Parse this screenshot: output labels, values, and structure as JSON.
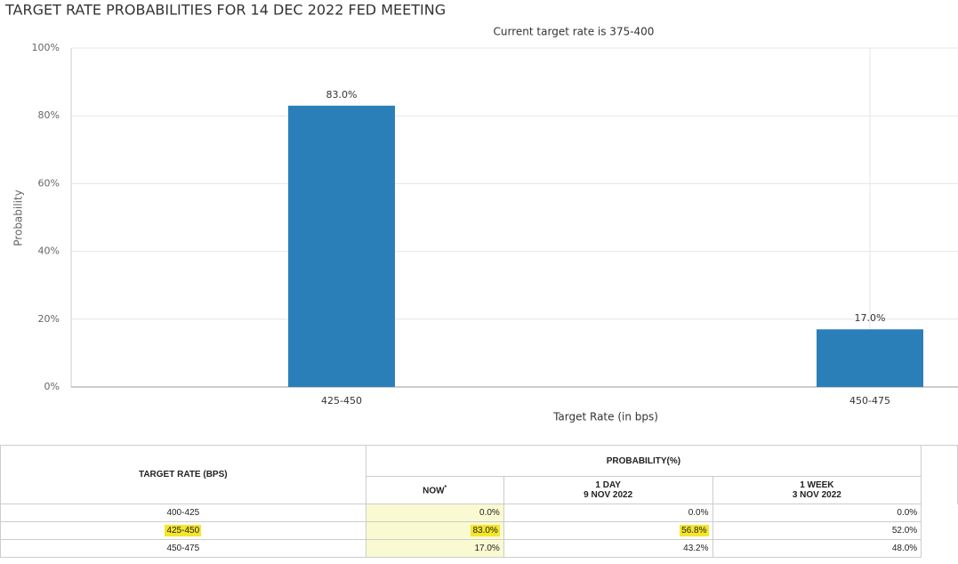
{
  "chart_data": {
    "type": "bar",
    "title": "TARGET RATE PROBABILITIES FOR 14 DEC 2022 FED MEETING",
    "subtitle": "Current target rate is 375-400",
    "x_label": "Target Rate (in bps)",
    "y_label": "Probability",
    "categories": [
      "425-450",
      "450-475"
    ],
    "values": [
      83.0,
      17.0
    ],
    "value_labels": [
      "83.0%",
      "17.0%"
    ],
    "color": "#2b7fb8",
    "ylim": [
      0,
      100
    ],
    "yticks": [
      {
        "value": 0,
        "label": "0%"
      },
      {
        "value": 20,
        "label": "20%"
      },
      {
        "value": 40,
        "label": "40%"
      },
      {
        "value": 60,
        "label": "60%"
      },
      {
        "value": 80,
        "label": "80%"
      },
      {
        "value": 100,
        "label": "100%"
      }
    ],
    "grid": true
  },
  "table": {
    "row_header": "TARGET RATE (BPS)",
    "group_header": "PROBABILITY(%)",
    "columns": [
      {
        "title": "NOW",
        "note": "*"
      },
      {
        "title": "1 DAY",
        "date": "9 NOV 2022"
      },
      {
        "title": "1 WEEK",
        "date": "3 NOV 2022"
      }
    ],
    "rows": [
      [
        "400-425",
        "0.0%",
        "0.0%",
        "0.0%"
      ],
      [
        "425-450",
        "83.0%",
        "56.8%",
        "52.0%"
      ],
      [
        "450-475",
        "17.0%",
        "43.2%",
        "48.0%"
      ]
    ]
  }
}
